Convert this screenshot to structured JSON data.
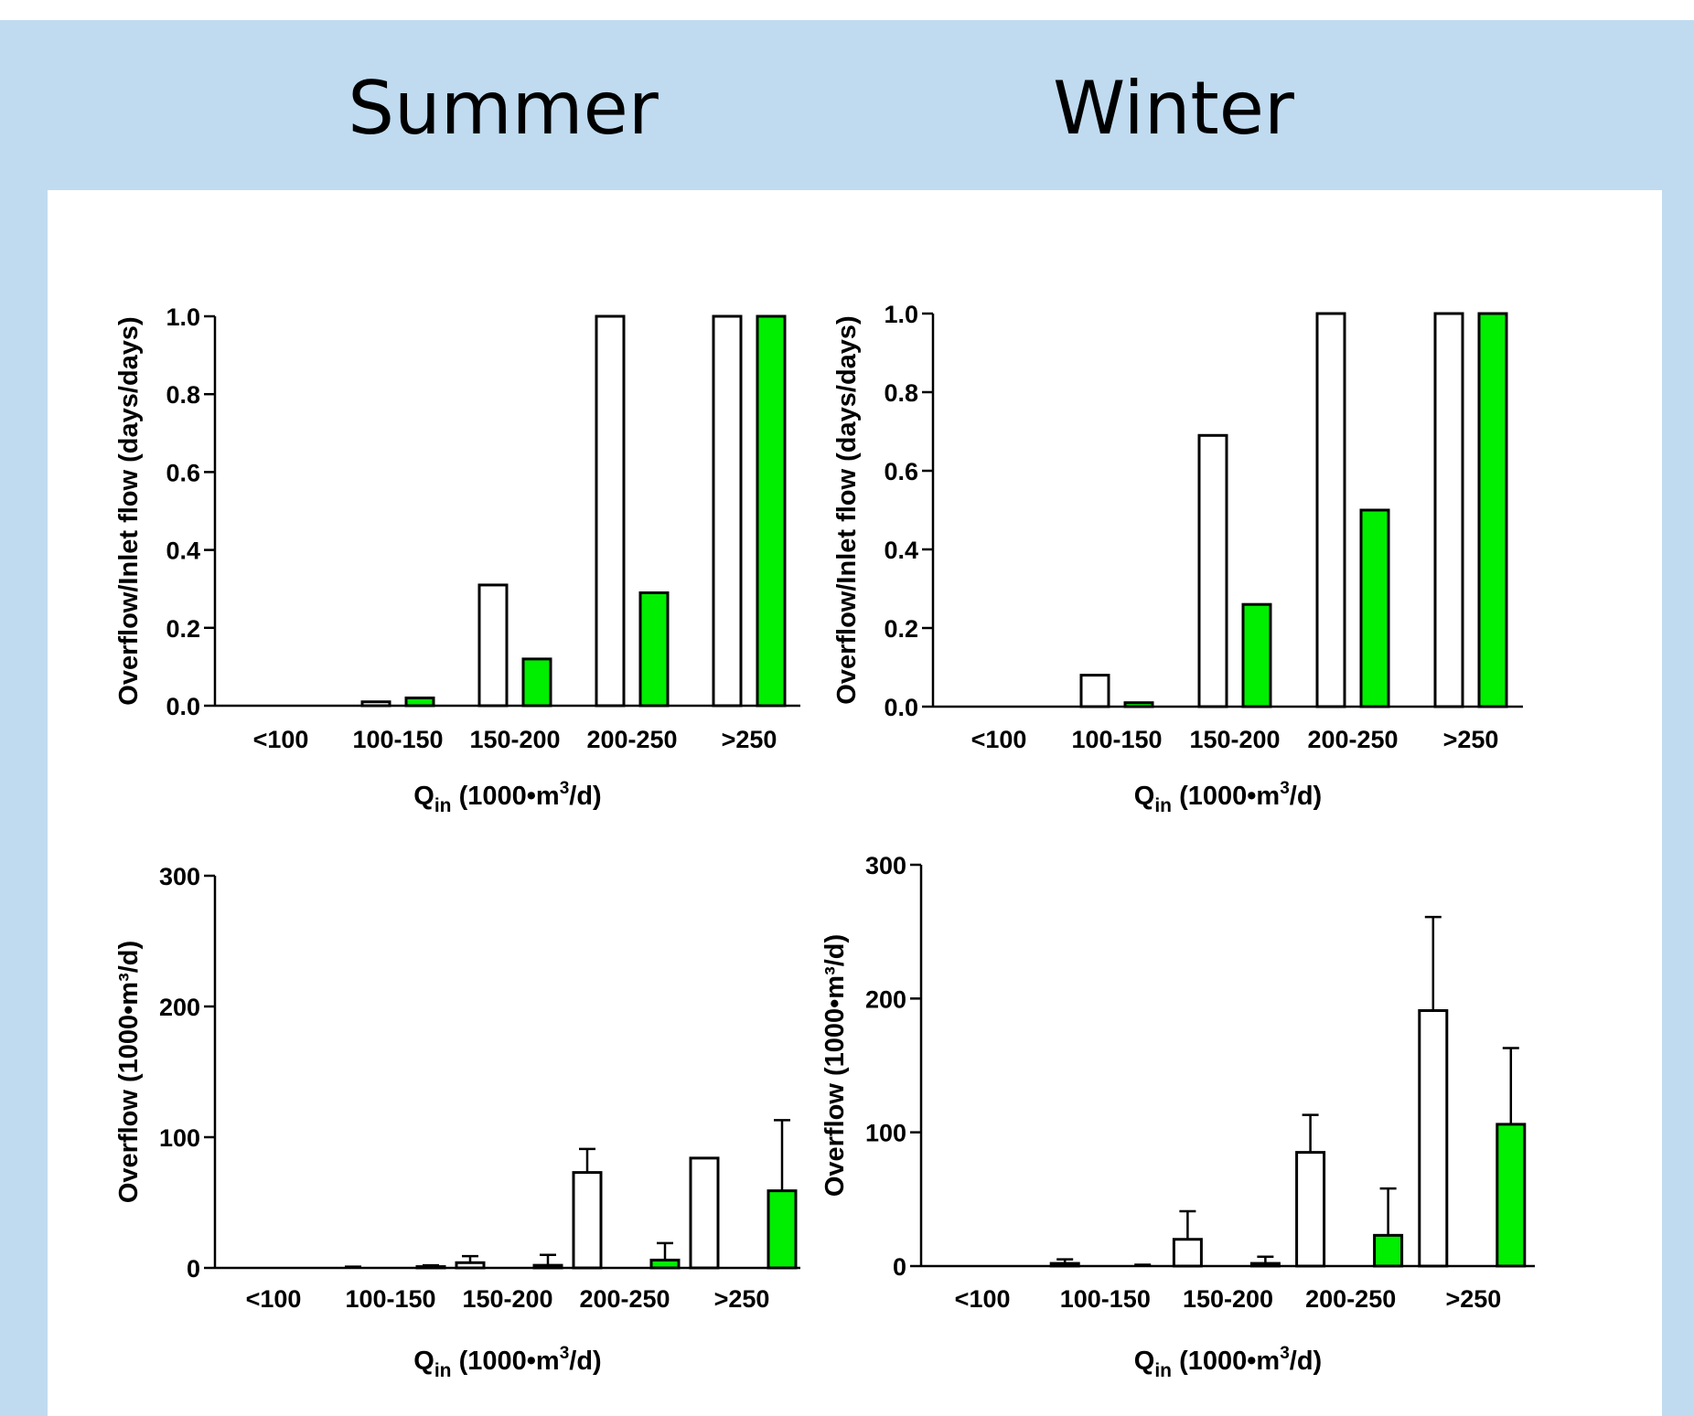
{
  "headers": {
    "summer": "Summer",
    "winter": "Winter"
  },
  "colors": {
    "background": "#c0dbf0",
    "panel": "#ffffff",
    "series1": "#ffffff",
    "series2": "#00ee00",
    "stroke": "#000000"
  },
  "chart_data": [
    {
      "type": "bar",
      "categories": [
        "<100",
        "100-150",
        "150-200",
        "200-250",
        ">250"
      ],
      "category_labels": [
        "<100",
        "100-150",
        "150-200",
        "200-250",
        ">250"
      ],
      "series": [
        {
          "values": [
            0,
            0.01,
            0.31,
            1.0,
            1.0
          ]
        },
        {
          "values": [
            0,
            0.02,
            0.12,
            0.29,
            1.0
          ]
        }
      ],
      "ylabel": "Overflow/Inlet flow (days/days)",
      "xlabel": {
        "q": "Q",
        "sub": "in",
        "pre": " (1000•m",
        "sup": "3",
        "post": "/d)"
      },
      "ylim": [
        0,
        1.0
      ],
      "yticks": [
        "0.0",
        "0.2",
        "0.4",
        "0.6",
        "0.8",
        "1.0"
      ]
    },
    {
      "type": "bar",
      "categories": [
        "<100",
        "100-150",
        "150-200",
        "200-250",
        ">250"
      ],
      "category_labels": [
        "<100",
        "100-150",
        "150-200",
        "200-250",
        ">250"
      ],
      "series": [
        {
          "values": [
            0,
            0.08,
            0.69,
            1.0,
            1.0
          ]
        },
        {
          "values": [
            0,
            0.01,
            0.26,
            0.5,
            1.0
          ]
        }
      ],
      "ylabel": "Overflow/Inlet flow (days/days)",
      "xlabel": {
        "q": "Q",
        "sub": "in",
        "pre": " (1000•m",
        "sup": "3",
        "post": "/d)"
      },
      "ylim": [
        0,
        1.0
      ],
      "yticks": [
        "0.0",
        "0.2",
        "0.4",
        "0.6",
        "0.8",
        "1.0"
      ]
    },
    {
      "type": "bar",
      "categories": [
        "<100",
        "100-150",
        "150-200",
        "200-250",
        ">250"
      ],
      "category_labels": [
        "<100",
        "100-150",
        "150-200",
        "200-250",
        ">250"
      ],
      "series": [
        {
          "values": [
            0,
            0,
            4,
            73,
            84
          ],
          "errors": [
            0,
            1,
            5,
            18,
            0
          ]
        },
        {
          "values": [
            0,
            1,
            2,
            6,
            59
          ],
          "errors": [
            0,
            1,
            8,
            13,
            54
          ]
        }
      ],
      "ylabel": "Overflow (1000•m³/d)",
      "xlabel": {
        "q": "Q",
        "sub": "in",
        "pre": " (1000•m",
        "sup": "3",
        "post": "/d)"
      },
      "ylim": [
        0,
        300
      ],
      "yticks": [
        "0",
        "100",
        "200",
        "300"
      ]
    },
    {
      "type": "bar",
      "categories": [
        "<100",
        "100-150",
        "150-200",
        "200-250",
        ">250"
      ],
      "category_labels": [
        "<100",
        "100-150",
        "150-200",
        "200-250",
        ">250"
      ],
      "series": [
        {
          "values": [
            0,
            2,
            20,
            85,
            191
          ],
          "errors": [
            0,
            3,
            21,
            28,
            70
          ]
        },
        {
          "values": [
            0,
            0,
            2,
            23,
            106
          ],
          "errors": [
            0,
            1,
            5,
            35,
            57
          ]
        }
      ],
      "ylabel": "Overflow (1000•m³/d)",
      "xlabel": {
        "q": "Q",
        "sub": "in",
        "pre": " (1000•m",
        "sup": "3",
        "post": "/d)"
      },
      "ylim": [
        0,
        300
      ],
      "yticks": [
        "0",
        "100",
        "200",
        "300"
      ]
    }
  ]
}
